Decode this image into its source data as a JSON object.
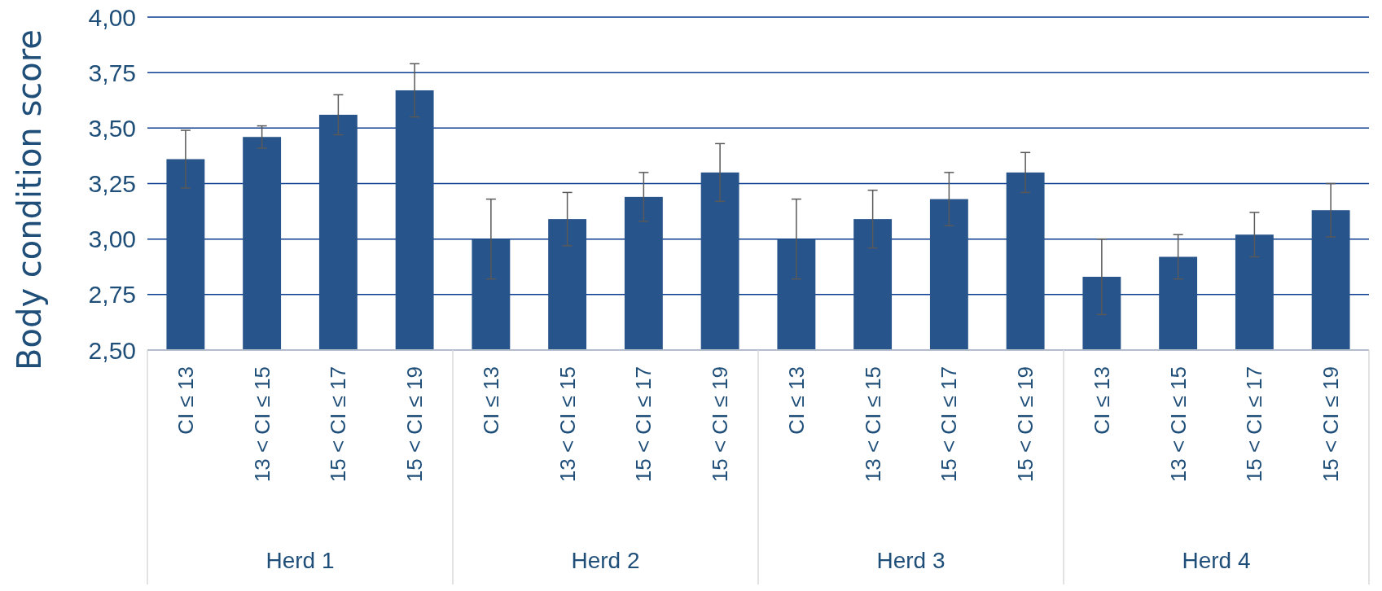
{
  "chart_data": {
    "type": "bar",
    "ylabel": "Body condition score",
    "categories": [
      "CI ≤ 13",
      "13 < CI ≤ 15",
      "15 < CI ≤ 17",
      "15 < CI ≤ 19",
      "CI ≤ 13",
      "13 < CI ≤ 15",
      "15 < CI ≤ 17",
      "15 < CI ≤ 19",
      "CI ≤ 13",
      "13 < CI ≤ 15",
      "15 < CI ≤ 17",
      "15 < CI ≤ 19",
      "CI ≤ 13",
      "13 < CI ≤ 15",
      "15 < CI ≤ 17",
      "15 < CI ≤ 19"
    ],
    "values": [
      3.36,
      3.46,
      3.56,
      3.67,
      3.0,
      3.09,
      3.19,
      3.3,
      3.0,
      3.09,
      3.18,
      3.3,
      2.83,
      2.92,
      3.02,
      3.13
    ],
    "errors": [
      0.13,
      0.05,
      0.09,
      0.12,
      0.18,
      0.12,
      0.11,
      0.13,
      0.18,
      0.13,
      0.12,
      0.09,
      0.17,
      0.1,
      0.1,
      0.12
    ],
    "color": "#27548a",
    "ylim": [
      2.5,
      4
    ],
    "yticks": [
      {
        "value": 2.5,
        "label": "2,50"
      },
      {
        "value": 2.75,
        "label": "2,75"
      },
      {
        "value": 3,
        "label": "3,00"
      },
      {
        "value": 3.25,
        "label": "3,25"
      },
      {
        "value": 3.5,
        "label": "3,50"
      },
      {
        "value": 3.75,
        "label": "3,75"
      },
      {
        "value": 4,
        "label": "4,00"
      }
    ],
    "grid": "y",
    "annotations": [
      "Herd 1",
      "Herd 2",
      "Herd 3",
      "Herd 4"
    ]
  }
}
